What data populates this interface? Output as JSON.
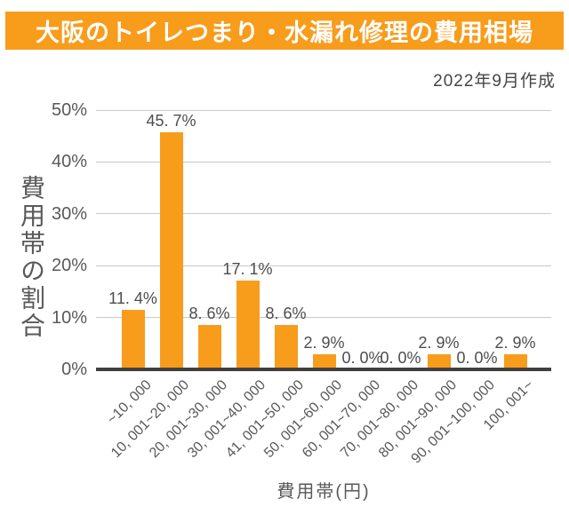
{
  "header": {
    "title": "大阪のトイレつまり・水漏れ修理の費用相場",
    "banner_color": "#F89C1C",
    "title_color": "#FFFFFF"
  },
  "meta": {
    "date_note": "2022年9月作成"
  },
  "chart_data": {
    "type": "bar",
    "title": "大阪のトイレつまり・水漏れ修理の費用相場",
    "xlabel": "費用帯(円)",
    "ylabel": "費用帯の割合",
    "ylim": [
      0,
      50
    ],
    "ytick_labels": [
      "0%",
      "10%",
      "20%",
      "30%",
      "40%",
      "50%"
    ],
    "grid": true,
    "legend_position": "none",
    "bar_color": "#F89C1C",
    "gridline_color": "#C9C9C9",
    "axis_line_color": "#404040",
    "categories": [
      "~10,000",
      "10,001~20,000",
      "20,001~30,000",
      "30,001~40,000",
      "41,001~50,000",
      "50,001~60,000",
      "60,001~70,000",
      "70,001~80,000",
      "80,001~90,000",
      "90,001~100,000",
      "100,001~"
    ],
    "category_display": [
      "~10, 000",
      "10, 001~20, 000",
      "20, 001~30, 000",
      "30, 001~40, 000",
      "41, 001~50, 000",
      "50, 001~60, 000",
      "60, 001~70, 000",
      "70, 001~80, 000",
      "80, 001~90, 000",
      "90, 001~100, 000",
      "100, 001~"
    ],
    "values": [
      11.4,
      45.7,
      8.6,
      17.1,
      8.6,
      2.9,
      0.0,
      0.0,
      2.9,
      0.0,
      2.9
    ],
    "value_labels": [
      "11. 4%",
      "45. 7%",
      "8. 6%",
      "17. 1%",
      "8. 6%",
      "2. 9%",
      "0. 0%",
      "0. 0%",
      "2. 9%",
      "0. 0%",
      "2. 9%"
    ]
  }
}
